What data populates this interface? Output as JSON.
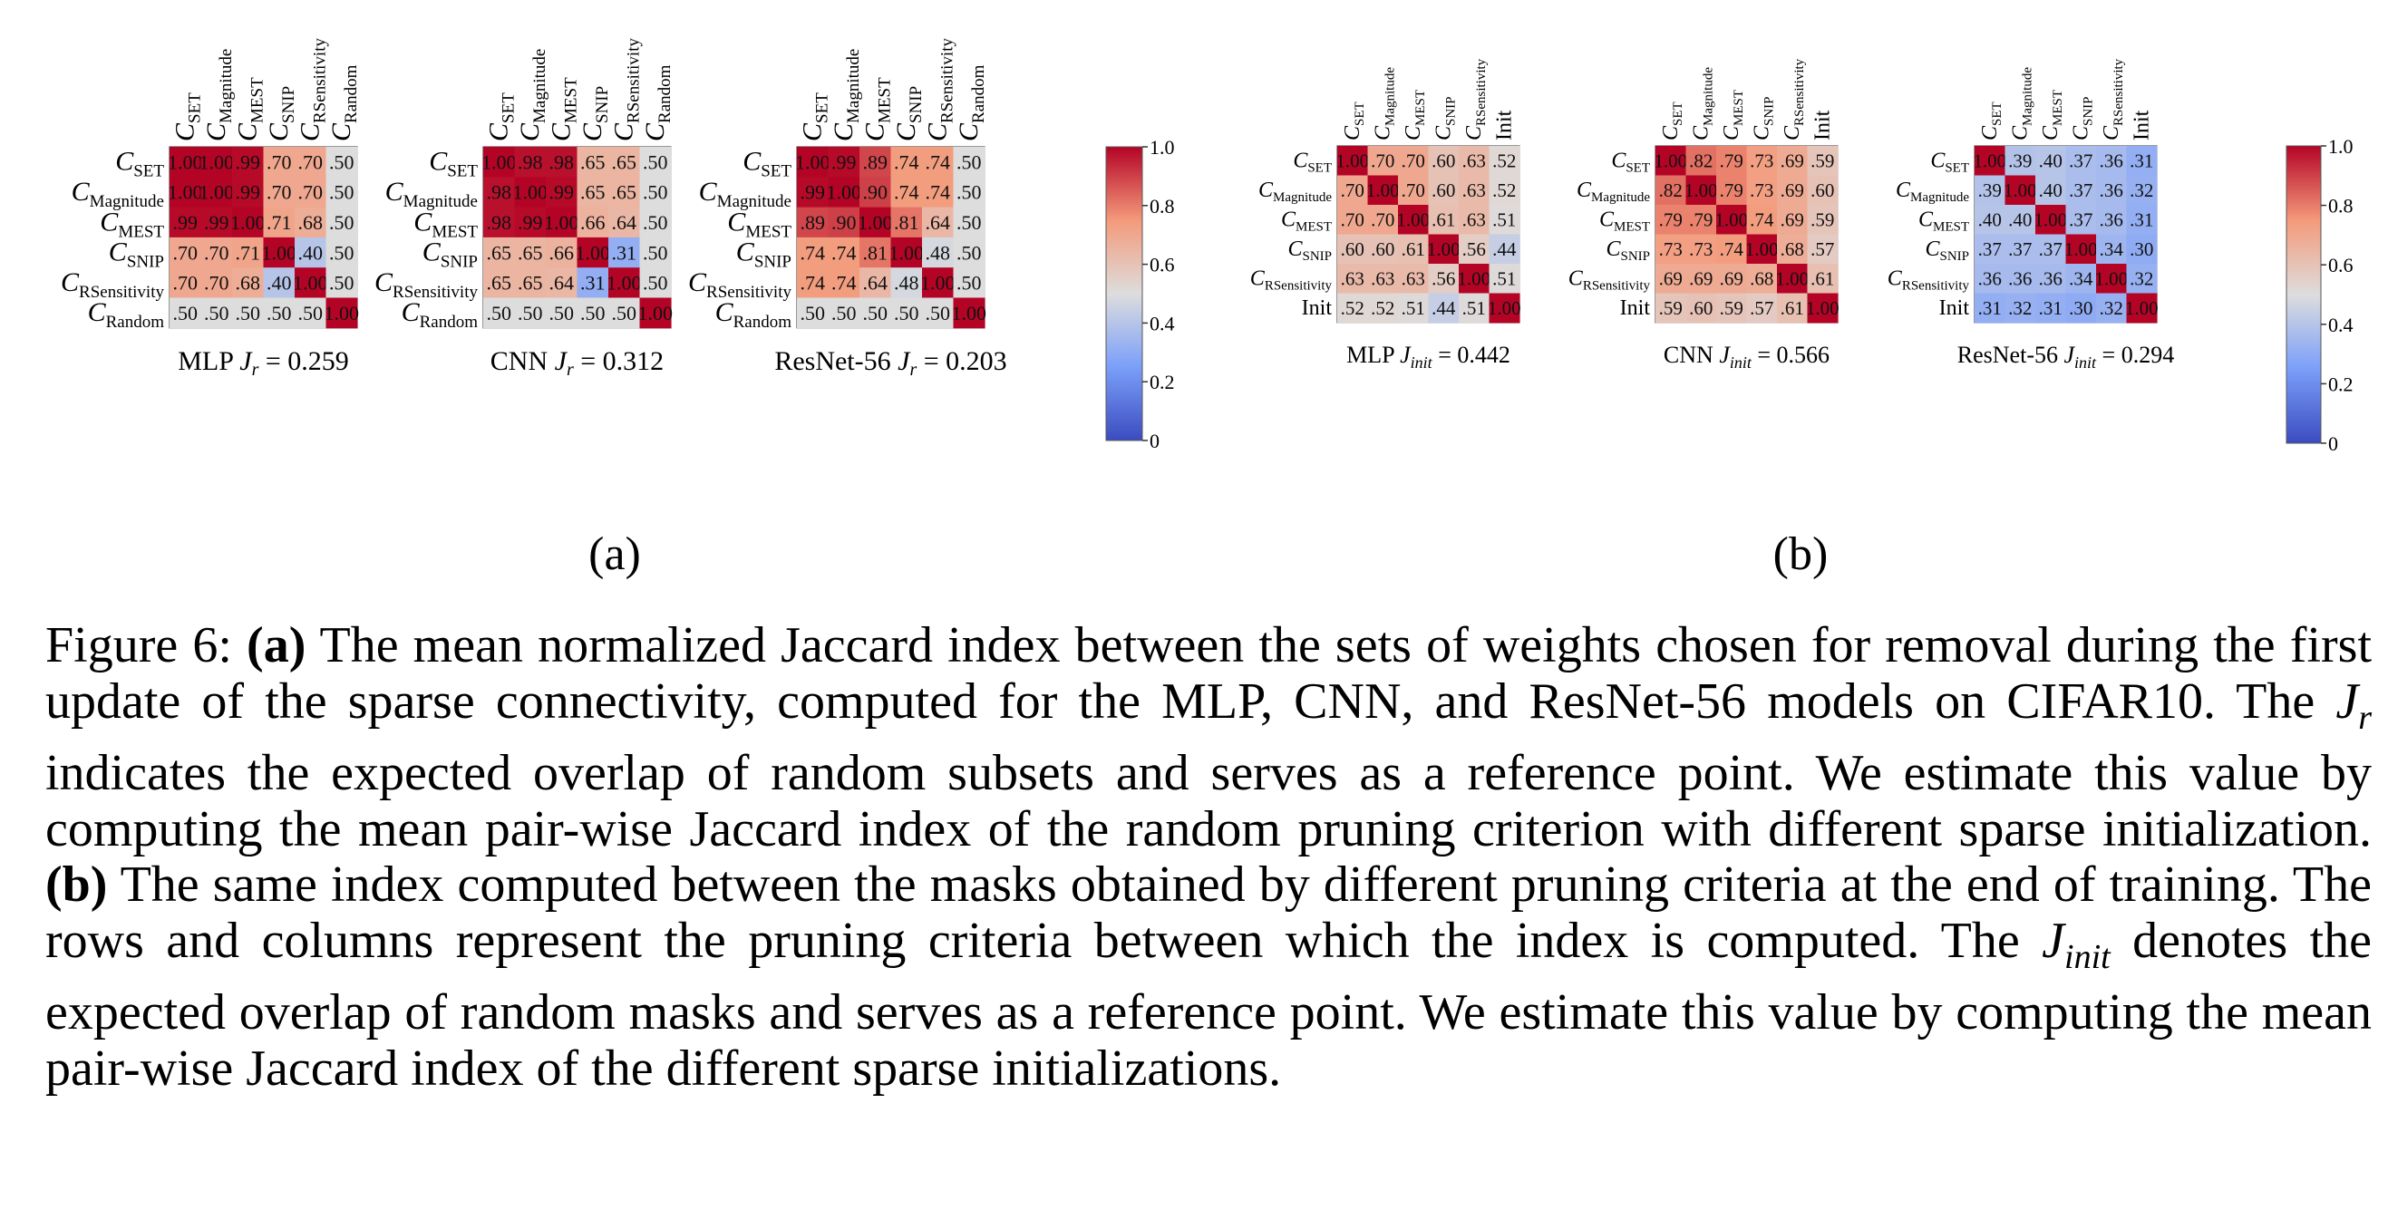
{
  "figure": {
    "label_a": "(a)",
    "label_b": "(b)"
  },
  "colors": {
    "cmap_low": "#3b4cc0",
    "cmap_mid": "#dddddd",
    "cmap_high": "#b40426",
    "panel_background": "#dddddd"
  },
  "chart_data": [
    {
      "type": "heatmap",
      "group": "a",
      "model": "MLP",
      "title_text": "MLP",
      "metric_symbol": "J_r",
      "metric_value": "= 0.259",
      "labels": [
        "SET",
        "Magnitude",
        "MEST",
        "SNIP",
        "RSensitivity",
        "Random"
      ],
      "label_style": "C-sub",
      "values": [
        [
          1.0,
          1.0,
          0.99,
          0.7,
          0.7,
          0.5
        ],
        [
          1.0,
          1.0,
          0.99,
          0.7,
          0.7,
          0.5
        ],
        [
          0.99,
          0.99,
          1.0,
          0.71,
          0.68,
          0.5
        ],
        [
          0.7,
          0.7,
          0.71,
          1.0,
          0.4,
          0.5
        ],
        [
          0.7,
          0.7,
          0.68,
          0.4,
          1.0,
          0.5
        ],
        [
          0.5,
          0.5,
          0.5,
          0.5,
          0.5,
          1.0
        ]
      ],
      "display": [
        [
          "1.00",
          "1.00",
          ".99",
          ".70",
          ".70",
          ".50"
        ],
        [
          "1.00",
          "1.00",
          ".99",
          ".70",
          ".70",
          ".50"
        ],
        [
          ".99",
          ".99",
          "1.00",
          ".71",
          ".68",
          ".50"
        ],
        [
          ".70",
          ".70",
          ".71",
          "1.00",
          ".40",
          ".50"
        ],
        [
          ".70",
          ".70",
          ".68",
          ".40",
          "1.00",
          ".50"
        ],
        [
          ".50",
          ".50",
          ".50",
          ".50",
          ".50",
          "1.00"
        ]
      ],
      "colormap": "coolwarm",
      "vmin": 0.5,
      "vmax": 1.0
    },
    {
      "type": "heatmap",
      "group": "a",
      "model": "CNN",
      "title_text": "CNN",
      "metric_symbol": "J_r",
      "metric_value": "= 0.312",
      "labels": [
        "SET",
        "Magnitude",
        "MEST",
        "SNIP",
        "RSensitivity",
        "Random"
      ],
      "label_style": "C-sub",
      "values": [
        [
          1.0,
          0.98,
          0.98,
          0.65,
          0.65,
          0.5
        ],
        [
          0.98,
          1.0,
          0.99,
          0.65,
          0.65,
          0.5
        ],
        [
          0.98,
          0.99,
          1.0,
          0.66,
          0.64,
          0.5
        ],
        [
          0.65,
          0.65,
          0.66,
          1.0,
          0.31,
          0.5
        ],
        [
          0.65,
          0.65,
          0.64,
          0.31,
          1.0,
          0.5
        ],
        [
          0.5,
          0.5,
          0.5,
          0.5,
          0.5,
          1.0
        ]
      ],
      "display": [
        [
          "1.00",
          ".98",
          ".98",
          ".65",
          ".65",
          ".50"
        ],
        [
          ".98",
          "1.00",
          ".99",
          ".65",
          ".65",
          ".50"
        ],
        [
          ".98",
          ".99",
          "1.00",
          ".66",
          ".64",
          ".50"
        ],
        [
          ".65",
          ".65",
          ".66",
          "1.00",
          ".31",
          ".50"
        ],
        [
          ".65",
          ".65",
          ".64",
          ".31",
          "1.00",
          ".50"
        ],
        [
          ".50",
          ".50",
          ".50",
          ".50",
          ".50",
          "1.00"
        ]
      ],
      "colormap": "coolwarm",
      "vmin": 0.5,
      "vmax": 1.0
    },
    {
      "type": "heatmap",
      "group": "a",
      "model": "ResNet-56",
      "title_text": "ResNet-56",
      "metric_symbol": "J_r",
      "metric_value": "= 0.203",
      "labels": [
        "SET",
        "Magnitude",
        "MEST",
        "SNIP",
        "RSensitivity",
        "Random"
      ],
      "label_style": "C-sub",
      "values": [
        [
          1.0,
          0.99,
          0.89,
          0.74,
          0.74,
          0.5
        ],
        [
          0.99,
          1.0,
          0.9,
          0.74,
          0.74,
          0.5
        ],
        [
          0.89,
          0.9,
          1.0,
          0.81,
          0.64,
          0.5
        ],
        [
          0.74,
          0.74,
          0.81,
          1.0,
          0.48,
          0.5
        ],
        [
          0.74,
          0.74,
          0.64,
          0.48,
          1.0,
          0.5
        ],
        [
          0.5,
          0.5,
          0.5,
          0.5,
          0.5,
          1.0
        ]
      ],
      "display": [
        [
          "1.00",
          ".99",
          ".89",
          ".74",
          ".74",
          ".50"
        ],
        [
          ".99",
          "1.00",
          ".90",
          ".74",
          ".74",
          ".50"
        ],
        [
          ".89",
          ".90",
          "1.00",
          ".81",
          ".64",
          ".50"
        ],
        [
          ".74",
          ".74",
          ".81",
          "1.00",
          ".48",
          ".50"
        ],
        [
          ".74",
          ".74",
          ".64",
          ".48",
          "1.00",
          ".50"
        ],
        [
          ".50",
          ".50",
          ".50",
          ".50",
          ".50",
          "1.00"
        ]
      ],
      "colormap": "coolwarm",
      "vmin": 0.5,
      "vmax": 1.0
    },
    {
      "type": "colorbar",
      "group": "a",
      "ticks": [
        "1.0",
        "0.8",
        "0.6",
        "0.4",
        "0.2",
        "0"
      ],
      "range": [
        0,
        1
      ]
    },
    {
      "type": "heatmap",
      "group": "b",
      "model": "MLP",
      "title_text": "MLP",
      "metric_symbol": "J_init",
      "metric_value": "= 0.442",
      "labels": [
        "SET",
        "Magnitude",
        "MEST",
        "SNIP",
        "RSensitivity",
        "Init"
      ],
      "label_style": "C-sub",
      "values": [
        [
          1.0,
          0.7,
          0.7,
          0.6,
          0.63,
          0.52
        ],
        [
          0.7,
          1.0,
          0.7,
          0.6,
          0.63,
          0.52
        ],
        [
          0.7,
          0.7,
          1.0,
          0.61,
          0.63,
          0.51
        ],
        [
          0.6,
          0.6,
          0.61,
          1.0,
          0.56,
          0.44
        ],
        [
          0.63,
          0.63,
          0.63,
          0.56,
          1.0,
          0.51
        ],
        [
          0.52,
          0.52,
          0.51,
          0.44,
          0.51,
          1.0
        ]
      ],
      "display": [
        [
          "1.00",
          ".70",
          ".70",
          ".60",
          ".63",
          ".52"
        ],
        [
          ".70",
          "1.00",
          ".70",
          ".60",
          ".63",
          ".52"
        ],
        [
          ".70",
          ".70",
          "1.00",
          ".61",
          ".63",
          ".51"
        ],
        [
          ".60",
          ".60",
          ".61",
          "1.00",
          ".56",
          ".44"
        ],
        [
          ".63",
          ".63",
          ".63",
          ".56",
          "1.00",
          ".51"
        ],
        [
          ".52",
          ".52",
          ".51",
          ".44",
          ".51",
          "1.00"
        ]
      ],
      "colormap": "coolwarm",
      "vmin": 0.0,
      "vmax": 1.0
    },
    {
      "type": "heatmap",
      "group": "b",
      "model": "CNN",
      "title_text": "CNN",
      "metric_symbol": "J_init",
      "metric_value": "= 0.566",
      "labels": [
        "SET",
        "Magnitude",
        "MEST",
        "SNIP",
        "RSensitivity",
        "Init"
      ],
      "label_style": "C-sub",
      "values": [
        [
          1.0,
          0.82,
          0.79,
          0.73,
          0.69,
          0.59
        ],
        [
          0.82,
          1.0,
          0.79,
          0.73,
          0.69,
          0.6
        ],
        [
          0.79,
          0.79,
          1.0,
          0.74,
          0.69,
          0.59
        ],
        [
          0.73,
          0.73,
          0.74,
          1.0,
          0.68,
          0.57
        ],
        [
          0.69,
          0.69,
          0.69,
          0.68,
          1.0,
          0.61
        ],
        [
          0.59,
          0.6,
          0.59,
          0.57,
          0.61,
          1.0
        ]
      ],
      "display": [
        [
          "1.00",
          ".82",
          ".79",
          ".73",
          ".69",
          ".59"
        ],
        [
          ".82",
          "1.00",
          ".79",
          ".73",
          ".69",
          ".60"
        ],
        [
          ".79",
          ".79",
          "1.00",
          ".74",
          ".69",
          ".59"
        ],
        [
          ".73",
          ".73",
          ".74",
          "1.00",
          ".68",
          ".57"
        ],
        [
          ".69",
          ".69",
          ".69",
          ".68",
          "1.00",
          ".61"
        ],
        [
          ".59",
          ".60",
          ".59",
          ".57",
          ".61",
          "1.00"
        ]
      ],
      "colormap": "coolwarm",
      "vmin": 0.0,
      "vmax": 1.0
    },
    {
      "type": "heatmap",
      "group": "b",
      "model": "ResNet-56",
      "title_text": "ResNet-56",
      "metric_symbol": "J_init",
      "metric_value": "= 0.294",
      "labels": [
        "SET",
        "Magnitude",
        "MEST",
        "SNIP",
        "RSensitivity",
        "Init"
      ],
      "label_style": "C-sub",
      "values": [
        [
          1.0,
          0.39,
          0.4,
          0.37,
          0.36,
          0.31
        ],
        [
          0.39,
          1.0,
          0.4,
          0.37,
          0.36,
          0.32
        ],
        [
          0.4,
          0.4,
          1.0,
          0.37,
          0.36,
          0.31
        ],
        [
          0.37,
          0.37,
          0.37,
          1.0,
          0.34,
          0.3
        ],
        [
          0.36,
          0.36,
          0.36,
          0.34,
          1.0,
          0.32
        ],
        [
          0.31,
          0.32,
          0.31,
          0.3,
          0.32,
          1.0
        ]
      ],
      "display": [
        [
          "1.00",
          ".39",
          ".40",
          ".37",
          ".36",
          ".31"
        ],
        [
          ".39",
          "1.00",
          ".40",
          ".37",
          ".36",
          ".32"
        ],
        [
          ".40",
          ".40",
          "1.00",
          ".37",
          ".36",
          ".31"
        ],
        [
          ".37",
          ".37",
          ".37",
          "1.00",
          ".34",
          ".30"
        ],
        [
          ".36",
          ".36",
          ".36",
          ".34",
          "1.00",
          ".32"
        ],
        [
          ".31",
          ".32",
          ".31",
          ".30",
          ".32",
          "1.00"
        ]
      ],
      "colormap": "coolwarm",
      "vmin": 0.0,
      "vmax": 1.0
    },
    {
      "type": "colorbar",
      "group": "b",
      "ticks": [
        "1.0",
        "0.8",
        "0.6",
        "0.4",
        "0.2",
        "0"
      ],
      "range": [
        0,
        1
      ]
    }
  ],
  "caption": {
    "fig_label": "Figure 6:",
    "part_a_marker": "(a)",
    "part_a_text_1": "The mean normalized Jaccard index between the sets of weights chosen for removal during the first update of the sparse connectivity, computed for the MLP, CNN, and ResNet-56 models on CIFAR10. The",
    "jr_symbol": "J",
    "jr_sub": "r",
    "part_a_text_2": "indicates the expected overlap of random subsets and serves as a reference point. We estimate this value by computing the mean pair-wise Jaccard index of the random pruning criterion with different sparse initialization.",
    "part_b_marker": "(b)",
    "part_b_text_1": "The same index computed between the masks obtained by different pruning criteria at the end of training. The rows and columns represent the pruning criteria between which the index is computed. The",
    "jinit_symbol": "J",
    "jinit_sub": "init",
    "part_b_text_2": "denotes the expected overlap of random masks and serves as a reference point. We estimate this value by computing the mean pair-wise Jaccard index of the different sparse initializations."
  }
}
